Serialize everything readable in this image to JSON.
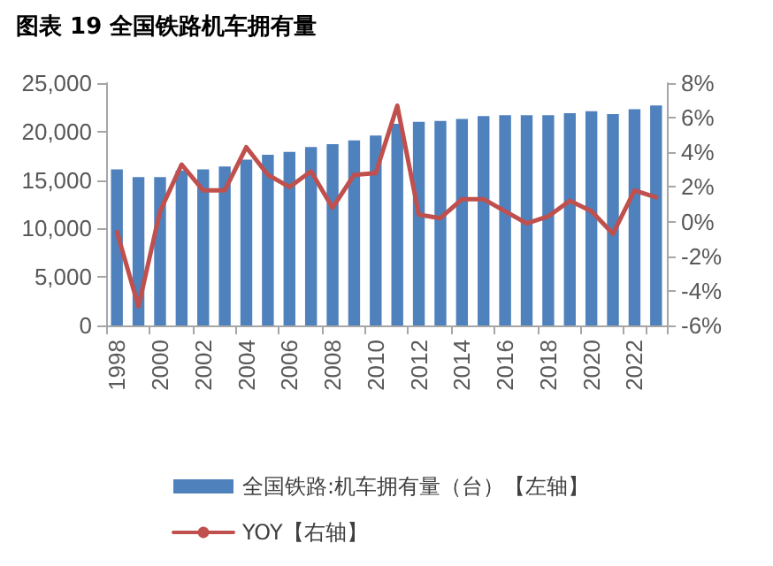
{
  "chart_data": {
    "type": "bar",
    "title": "图表 19 全国铁路机车拥有量",
    "categories": [
      "1998",
      null,
      "2000",
      null,
      "2002",
      null,
      "2004",
      null,
      "2006",
      null,
      "2008",
      null,
      "2010",
      null,
      "2012",
      null,
      "2014",
      null,
      "2016",
      null,
      "2018",
      null,
      "2020",
      null,
      "2022",
      null
    ],
    "series": [
      {
        "name": "全国铁路:机车拥有量（台）【左轴】",
        "color": "#4f81bd",
        "values": [
          16100,
          15300,
          15300,
          16000,
          16100,
          16400,
          17100,
          17600,
          17900,
          18400,
          18700,
          19100,
          19600,
          20800,
          21000,
          21100,
          21300,
          21600,
          21700,
          21700,
          21700,
          21900,
          22100,
          21800,
          22300,
          22700
        ]
      },
      {
        "name": "YOY【右轴】",
        "type": "line",
        "axis": "y2",
        "color": "#c0504d",
        "values": [
          -0.6,
          -4.9,
          0.6,
          3.3,
          1.8,
          1.8,
          4.3,
          2.7,
          2.0,
          2.9,
          0.8,
          2.7,
          2.8,
          6.7,
          0.4,
          0.2,
          1.3,
          1.3,
          0.6,
          -0.1,
          0.3,
          1.2,
          0.6,
          -0.7,
          1.8,
          1.4
        ]
      }
    ],
    "ylim": [
      0,
      25000
    ],
    "yticks": [
      {
        "value": 0,
        "label": "0"
      },
      {
        "value": 5000,
        "label": "5,000"
      },
      {
        "value": 10000,
        "label": "10,000"
      },
      {
        "value": 15000,
        "label": "15,000"
      },
      {
        "value": 20000,
        "label": "20,000"
      },
      {
        "value": 25000,
        "label": "25,000"
      }
    ],
    "y2lim": [
      -6,
      8
    ],
    "y2ticks": [
      {
        "value": -6,
        "label": "-6%"
      },
      {
        "value": -4,
        "label": "-4%"
      },
      {
        "value": -2,
        "label": "-2%"
      },
      {
        "value": 0,
        "label": "0%"
      },
      {
        "value": 2,
        "label": "2%"
      },
      {
        "value": 4,
        "label": "4%"
      },
      {
        "value": 6,
        "label": "6%"
      },
      {
        "value": 8,
        "label": "8%"
      }
    ],
    "grid": false,
    "legend": "bottom",
    "marker": "none",
    "line_style": "solid"
  }
}
